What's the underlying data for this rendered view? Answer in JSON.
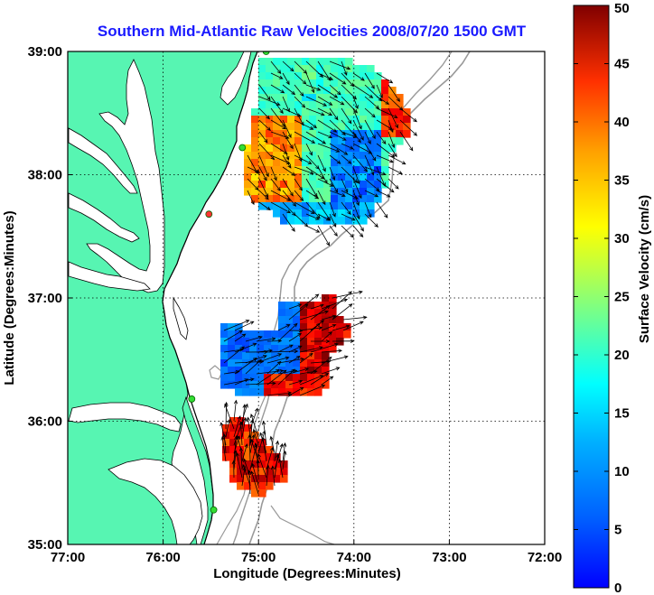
{
  "title": "Southern Mid-Atlantic Raw Velocities 2008/07/20 1500 GMT",
  "x_axis": {
    "label": "Longitude (Degrees:Minutes)",
    "ticks": [
      "77:00",
      "76:00",
      "75:00",
      "74:00",
      "73:00",
      "72:00"
    ]
  },
  "y_axis": {
    "label": "Latitude (Degrees:Minutes)",
    "ticks": [
      "39:00",
      "38:00",
      "37:00",
      "36:00",
      "35:00"
    ]
  },
  "colorbar": {
    "label": "Surface Velocity (cm/s)",
    "ticks": [
      "50",
      "45",
      "40",
      "35",
      "30",
      "25",
      "20",
      "15",
      "10",
      "5",
      "0"
    ],
    "min": 0,
    "max": 50,
    "colormap": "jet"
  },
  "colors": {
    "title": "#1a1aff",
    "land": "#57f5b2",
    "ocean": "#ffffff",
    "coastline": "#000000",
    "bathymetry": "#999999",
    "grid": "#000000",
    "site_marker": "#33dd33",
    "site_marker_red": "#ff3333",
    "vector": "#000000"
  },
  "map": {
    "lon_range": [
      -77,
      -72
    ],
    "lat_range": [
      35,
      39
    ],
    "grid": true,
    "grid_style": "dotted"
  },
  "velocity_regions": [
    {
      "name": "northern-patch",
      "speed_range_cm_s": [
        8,
        45
      ],
      "vector_direction": "southeast"
    },
    {
      "name": "central-patch",
      "speed_range_cm_s": [
        8,
        50
      ],
      "vector_direction": "east-northeast"
    },
    {
      "name": "southern-patch",
      "speed_range_cm_s": [
        30,
        50
      ],
      "vector_direction": "north"
    }
  ],
  "radar_sites": [
    {
      "lon": -74.92,
      "lat": 39.0,
      "color": "green"
    },
    {
      "lon": -75.17,
      "lat": 38.22,
      "color": "green"
    },
    {
      "lon": -75.52,
      "lat": 37.68,
      "color": "red"
    },
    {
      "lon": -75.7,
      "lat": 36.18,
      "color": "green"
    },
    {
      "lon": -75.47,
      "lat": 35.28,
      "color": "green"
    }
  ]
}
